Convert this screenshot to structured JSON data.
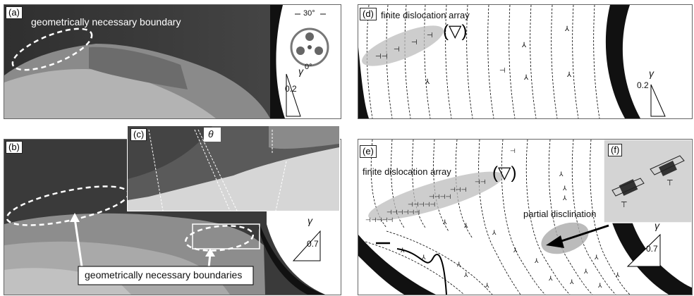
{
  "panels": {
    "a": {
      "tag": "(a)",
      "caption": "geometrically necessary boundary",
      "inset_top_angle": "30°",
      "inset_bottom_angle": "0°",
      "gamma": "γ",
      "strain": "0.2"
    },
    "b": {
      "tag": "(b)",
      "caption": "geometrically necessary boundaries",
      "gamma": "γ",
      "strain": "0.7"
    },
    "c": {
      "tag": "(c)",
      "theta": "θ"
    },
    "d": {
      "tag": "(d)",
      "caption": "finite dislocation array",
      "gamma": "γ",
      "strain": "0.2"
    },
    "e": {
      "tag": "(e)",
      "caption": "finite dislocation array",
      "disclination": "partial disclination",
      "gamma": "γ",
      "strain": "0.7"
    },
    "f": {
      "tag": "(f)"
    }
  }
}
